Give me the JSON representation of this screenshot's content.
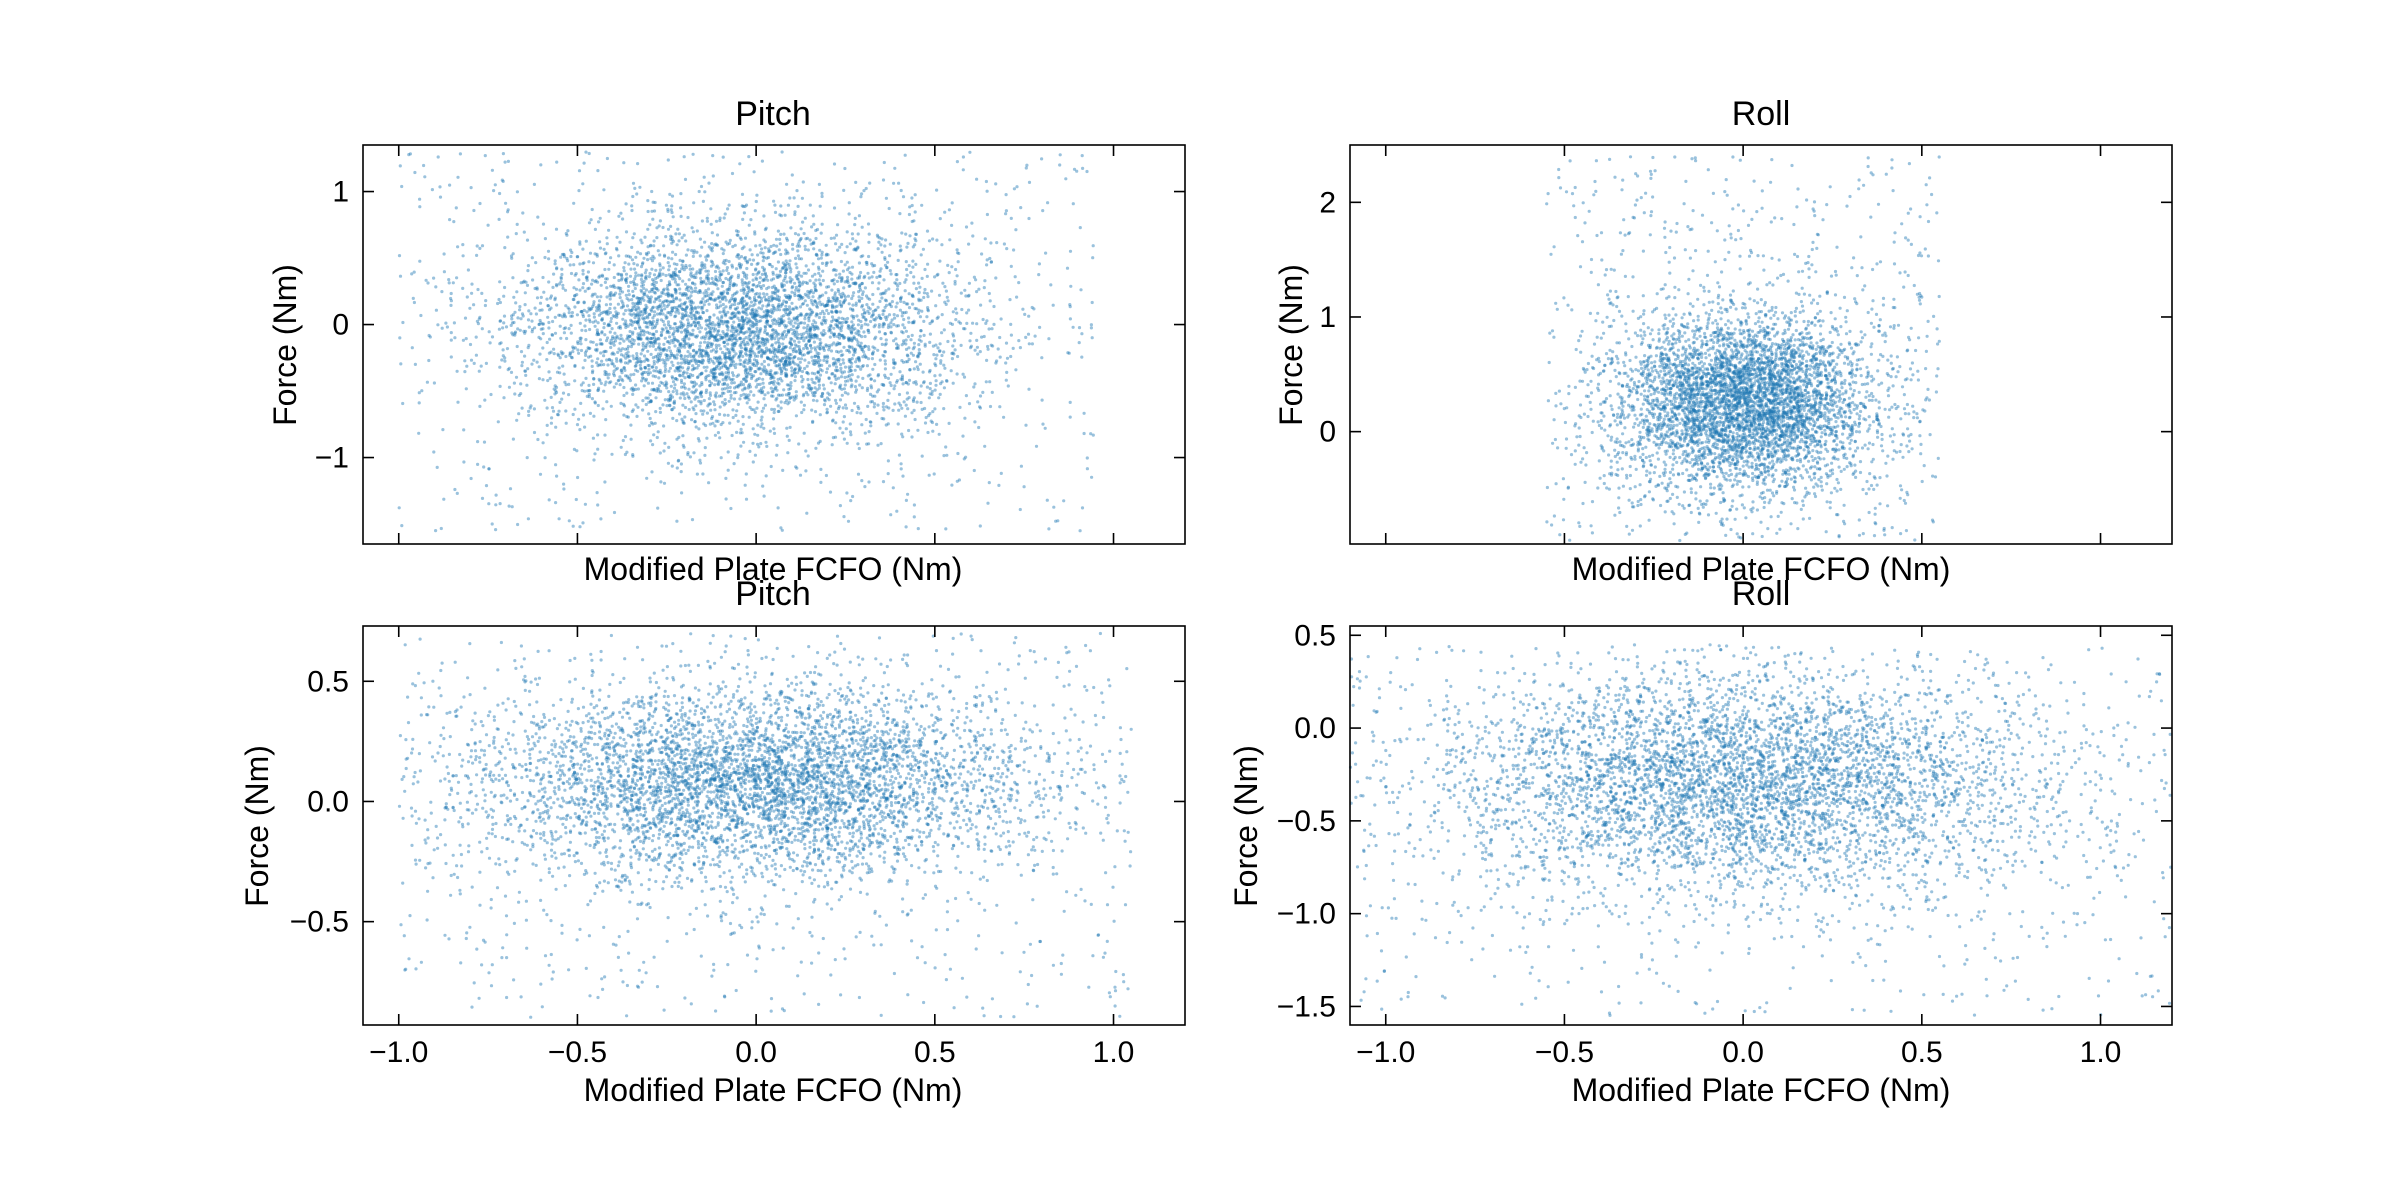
{
  "figure": {
    "colors": {
      "points": "#1f77b4",
      "axes": "#000000",
      "background": "#ffffff"
    }
  },
  "chart_data": [
    {
      "type": "scatter",
      "title": "Pitch",
      "xlabel": "Modified Plate FCFO (Nm)",
      "ylabel": "Force (Nm)",
      "xlim": [
        -1.1,
        1.2
      ],
      "ylim": [
        -1.65,
        1.35
      ],
      "xticks": [
        -1.0,
        -0.5,
        0.0,
        0.5,
        1.0
      ],
      "xtick_labels": [],
      "yticks": [
        1,
        0,
        -1
      ],
      "ytick_labels": [
        "1",
        "0",
        "−1"
      ],
      "grid": false,
      "series": [
        {
          "seed": 11,
          "count": 5200,
          "cluster": {
            "x": [
              -1.0,
              0.95
            ],
            "y": [
              -1.55,
              1.3
            ],
            "cx": -0.05,
            "cy": -0.05,
            "sx": 0.32,
            "sy": 0.38
          }
        }
      ]
    },
    {
      "type": "scatter",
      "title": "Roll",
      "xlabel": "Modified Plate FCFO (Nm)",
      "ylabel": "Force (Nm)",
      "xlim": [
        -1.1,
        1.2
      ],
      "ylim": [
        -0.98,
        2.5
      ],
      "xticks": [
        -1.0,
        -0.5,
        0.0,
        0.5,
        1.0
      ],
      "xtick_labels": [],
      "yticks": [
        2,
        1,
        0
      ],
      "ytick_labels": [
        "2",
        "1",
        "0"
      ],
      "grid": false,
      "series": [
        {
          "seed": 23,
          "count": 5200,
          "cluster": {
            "x": [
              -0.55,
              0.55
            ],
            "y": [
              -0.95,
              2.4
            ],
            "cx": 0.0,
            "cy": 0.25,
            "sx": 0.18,
            "sy": 0.38
          }
        }
      ]
    },
    {
      "type": "scatter",
      "title": "Pitch",
      "xlabel": "Modified Plate FCFO (Nm)",
      "ylabel": "Force (Nm)",
      "xlim": [
        -1.1,
        1.2
      ],
      "ylim": [
        -0.93,
        0.73
      ],
      "xticks": [
        -1.0,
        -0.5,
        0.0,
        0.5,
        1.0
      ],
      "xtick_labels": [
        "−1.0",
        "−0.5",
        "0.0",
        "0.5",
        "1.0"
      ],
      "yticks": [
        0.5,
        0.0,
        -0.5
      ],
      "ytick_labels": [
        "0.5",
        "0.0",
        "−0.5"
      ],
      "grid": false,
      "series": [
        {
          "seed": 37,
          "count": 5600,
          "cluster": {
            "x": [
              -1.0,
              1.05
            ],
            "y": [
              -0.9,
              0.7
            ],
            "cx": 0.0,
            "cy": 0.08,
            "sx": 0.4,
            "sy": 0.2
          }
        }
      ]
    },
    {
      "type": "scatter",
      "title": "Roll",
      "xlabel": "Modified Plate FCFO (Nm)",
      "ylabel": "Force (Nm)",
      "xlim": [
        -1.1,
        1.2
      ],
      "ylim": [
        -1.6,
        0.55
      ],
      "xticks": [
        -1.0,
        -0.5,
        0.0,
        0.5,
        1.0
      ],
      "xtick_labels": [
        "−1.0",
        "−0.5",
        "0.0",
        "0.5",
        "1.0"
      ],
      "yticks": [
        0.5,
        0.0,
        -0.5,
        -1.0,
        -1.5
      ],
      "ytick_labels": [
        "0.5",
        "0.0",
        "−0.5",
        "−1.0",
        "−1.5"
      ],
      "grid": false,
      "series": [
        {
          "seed": 53,
          "count": 5600,
          "cluster": {
            "x": [
              -1.1,
              1.2
            ],
            "y": [
              -1.55,
              0.45
            ],
            "cx": 0.0,
            "cy": -0.3,
            "sx": 0.42,
            "sy": 0.3
          }
        }
      ]
    }
  ]
}
